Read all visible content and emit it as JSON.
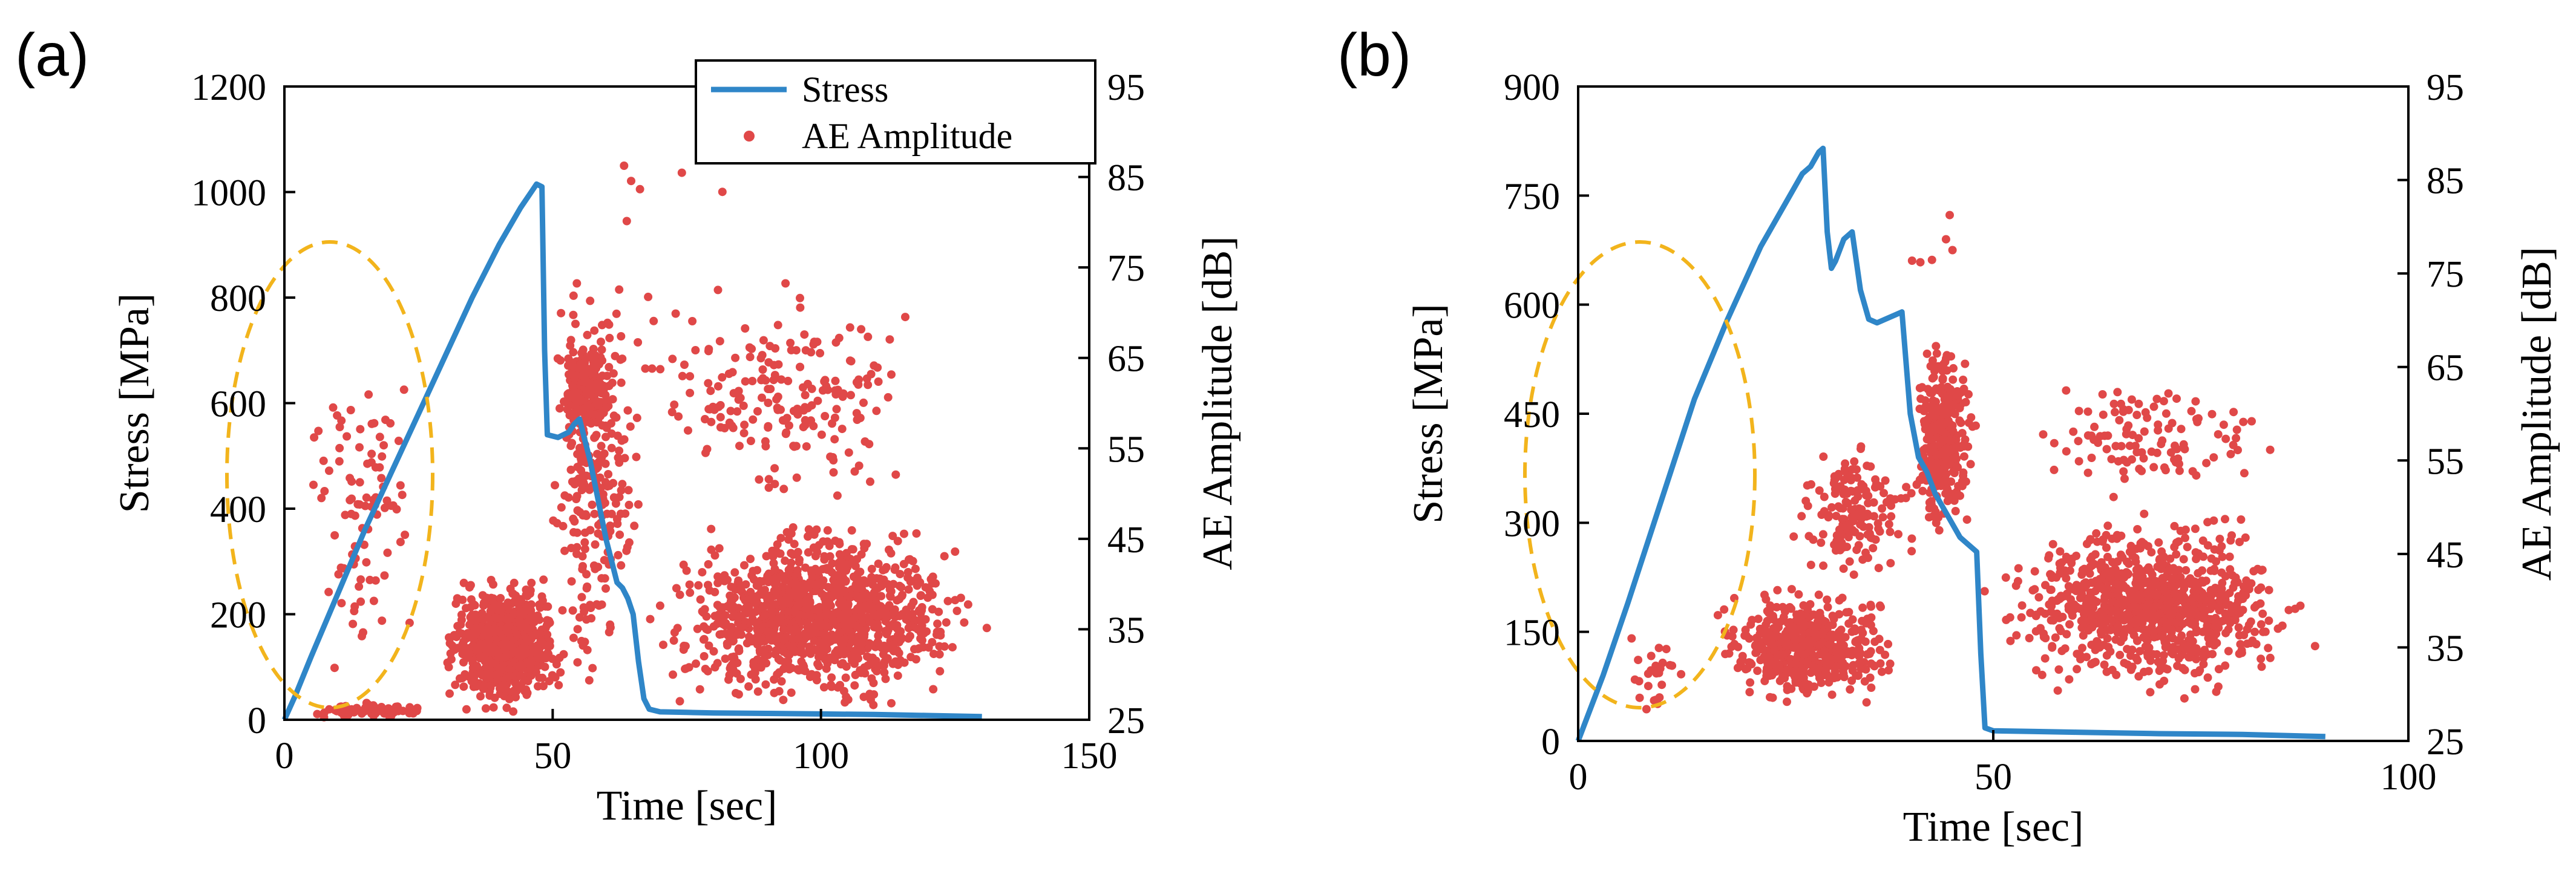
{
  "colors": {
    "stress": "#2f86c8",
    "amplitude": "#e04848",
    "highlight": "#f2b41c",
    "axis": "#000000"
  },
  "chart_data": [
    {
      "type": "scatter",
      "panel_label": "(a)",
      "xlabel": "Time [sec]",
      "ylabel": "Stress [MPa]",
      "y2label": "AE Amplitude [dB]",
      "xlim": [
        0,
        150
      ],
      "ylim": [
        0,
        1200
      ],
      "y2lim": [
        25,
        95
      ],
      "xticks": [
        "0",
        "50",
        "100",
        "150"
      ],
      "yticks": [
        "0",
        "200",
        "400",
        "600",
        "800",
        "1000",
        "1200"
      ],
      "y2ticks": [
        "25",
        "35",
        "45",
        "55",
        "65",
        "75",
        "85",
        "95"
      ],
      "legend": [
        "Stress",
        "AE Amplitude"
      ],
      "legend_position": "top-right",
      "stress": {
        "name": "Stress",
        "x": [
          0,
          2,
          5,
          10,
          15,
          20,
          25,
          30,
          35,
          40,
          44,
          46,
          47,
          48,
          48.5,
          49,
          51,
          53,
          54,
          55,
          56,
          57,
          58,
          59,
          60,
          61,
          62,
          63,
          64,
          65,
          66,
          67,
          68,
          70,
          75,
          80,
          90,
          100,
          110,
          120,
          130
        ],
        "values": [
          0,
          45,
          120,
          240,
          360,
          470,
          580,
          690,
          800,
          900,
          970,
          1000,
          1015,
          1010,
          700,
          540,
          535,
          545,
          560,
          570,
          530,
          490,
          440,
          390,
          340,
          300,
          260,
          250,
          230,
          200,
          110,
          40,
          20,
          15,
          14,
          13,
          12,
          11,
          10,
          8,
          6
        ]
      },
      "amplitude": {
        "name": "AE Amplitude",
        "clusters": [
          {
            "x_range": [
              0,
              28
            ],
            "db_range": [
              25,
              72
            ],
            "count": 90
          },
          {
            "x_range": [
              0,
              30
            ],
            "db_range": [
              25,
              27
            ],
            "count": 60
          },
          {
            "x_range": [
              28,
              54
            ],
            "db_range": [
              25,
              42
            ],
            "count": 700
          },
          {
            "x_range": [
              50,
              62
            ],
            "db_range": [
              55,
              68
            ],
            "count": 160
          },
          {
            "x_range": [
              48,
              68
            ],
            "db_range": [
              25,
              80
            ],
            "count": 260
          },
          {
            "x_range": [
              66,
              132
            ],
            "db_range": [
              25,
              48
            ],
            "count": 1150
          },
          {
            "x_range": [
              60,
              128
            ],
            "db_range": [
              48,
              75
            ],
            "count": 200
          },
          {
            "x_range": [
              55,
              90
            ],
            "db_range": [
              78,
              90
            ],
            "count": 6
          }
        ]
      },
      "annotation": "dashed ellipse highlighting early loading stage"
    },
    {
      "type": "scatter",
      "panel_label": "(b)",
      "xlabel": "Time [sec]",
      "ylabel": "Stress [MPa]",
      "y2label": "AE Amplitude [dB]",
      "xlim": [
        0,
        100
      ],
      "ylim": [
        0,
        900
      ],
      "y2lim": [
        25,
        95
      ],
      "xticks": [
        "0",
        "50",
        "100"
      ],
      "yticks": [
        "0",
        "150",
        "300",
        "450",
        "600",
        "750",
        "900"
      ],
      "y2ticks": [
        "25",
        "35",
        "45",
        "55",
        "65",
        "75",
        "85",
        "95"
      ],
      "stress": {
        "name": "Stress",
        "x": [
          0,
          3,
          6,
          10,
          14,
          18,
          22,
          25,
          27,
          28,
          29,
          29.5,
          30,
          30.5,
          31,
          32,
          33,
          34,
          35,
          36,
          37,
          38,
          39,
          40,
          41,
          42,
          43,
          44,
          45,
          46,
          47,
          48,
          48.5,
          49,
          50,
          55,
          60,
          70,
          80,
          90
        ],
        "values": [
          0,
          90,
          190,
          330,
          470,
          580,
          680,
          740,
          780,
          790,
          810,
          815,
          700,
          650,
          660,
          690,
          700,
          620,
          580,
          575,
          580,
          585,
          590,
          450,
          390,
          370,
          340,
          320,
          300,
          280,
          270,
          260,
          120,
          18,
          14,
          13,
          12,
          10,
          9,
          6
        ]
      },
      "amplitude": {
        "name": "AE Amplitude",
        "clusters": [
          {
            "x_range": [
              3,
              15
            ],
            "db_range": [
              25,
              40
            ],
            "count": 25
          },
          {
            "x_range": [
              15,
              40
            ],
            "db_range": [
              28,
              42
            ],
            "count": 500
          },
          {
            "x_range": [
              25,
              42
            ],
            "db_range": [
              40,
              58
            ],
            "count": 160
          },
          {
            "x_range": [
              40,
              48
            ],
            "db_range": [
              45,
              70
            ],
            "count": 320
          },
          {
            "x_range": [
              48,
              90
            ],
            "db_range": [
              29,
              50
            ],
            "count": 900
          },
          {
            "x_range": [
              48,
              90
            ],
            "db_range": [
              50,
              65
            ],
            "count": 110
          },
          {
            "x_range": [
              38,
              48
            ],
            "db_range": [
              70,
              88
            ],
            "count": 6
          }
        ]
      },
      "annotation": "dashed ellipse highlighting early loading stage"
    }
  ]
}
